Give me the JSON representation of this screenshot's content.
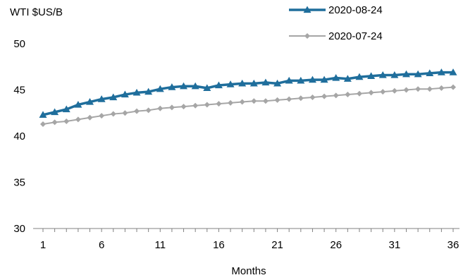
{
  "chart_data": {
    "type": "line",
    "title": "",
    "ylabel": "WTI $US/B",
    "xlabel": "Months",
    "ylim": [
      30,
      50
    ],
    "xlim": [
      1,
      36
    ],
    "y_ticks": [
      "30",
      "35",
      "40",
      "45",
      "50"
    ],
    "x_ticks": [
      "1",
      "6",
      "11",
      "16",
      "21",
      "26",
      "31",
      "36"
    ],
    "grid": false,
    "legend_position": "top-right",
    "x": [
      1,
      2,
      3,
      4,
      5,
      6,
      7,
      8,
      9,
      10,
      11,
      12,
      13,
      14,
      15,
      16,
      17,
      18,
      19,
      20,
      21,
      22,
      23,
      24,
      25,
      26,
      27,
      28,
      29,
      30,
      31,
      32,
      33,
      34,
      35,
      36
    ],
    "series": [
      {
        "name": "2020-08-24",
        "color": "#1F6E9C",
        "marker": "triangle",
        "values": [
          42.3,
          42.6,
          42.9,
          43.4,
          43.7,
          44.0,
          44.2,
          44.5,
          44.7,
          44.8,
          45.1,
          45.3,
          45.4,
          45.4,
          45.2,
          45.5,
          45.6,
          45.7,
          45.7,
          45.8,
          45.7,
          46.0,
          46.0,
          46.1,
          46.1,
          46.3,
          46.2,
          46.4,
          46.5,
          46.6,
          46.6,
          46.7,
          46.7,
          46.8,
          46.9,
          46.9
        ]
      },
      {
        "name": "2020-07-24",
        "color": "#A6A6A6",
        "marker": "diamond",
        "values": [
          41.3,
          41.5,
          41.6,
          41.8,
          42.0,
          42.2,
          42.4,
          42.5,
          42.7,
          42.8,
          43.0,
          43.1,
          43.2,
          43.3,
          43.4,
          43.5,
          43.6,
          43.7,
          43.8,
          43.8,
          43.9,
          44.0,
          44.1,
          44.2,
          44.3,
          44.4,
          44.5,
          44.6,
          44.7,
          44.8,
          44.9,
          45.0,
          45.1,
          45.1,
          45.2,
          45.3
        ]
      }
    ]
  }
}
